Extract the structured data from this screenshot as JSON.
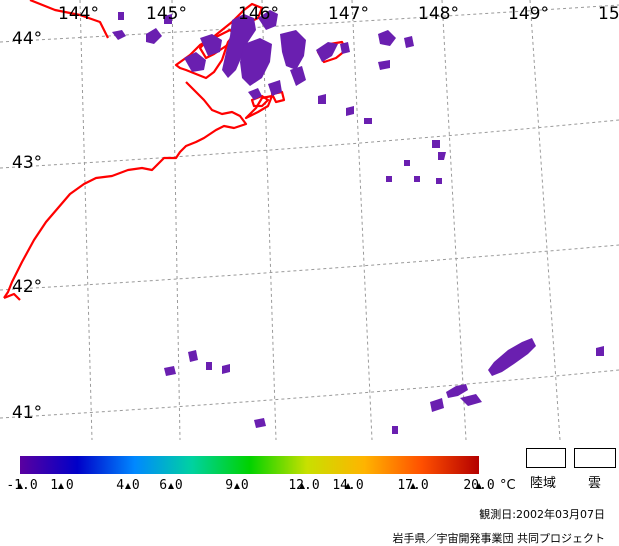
{
  "map": {
    "lon_labels": [
      "144°",
      "145°",
      "146°",
      "147°",
      "148°",
      "149°",
      "15"
    ],
    "lat_labels": [
      "44°",
      "43°",
      "42°",
      "41°"
    ],
    "colors": {
      "coast": "#ff0000",
      "grid": "#9a9a9a",
      "cloud": "#6a1fb0"
    }
  },
  "legend": {
    "tick_labels": [
      "-1.0",
      "1.0",
      "4.0",
      "6.0",
      "9.0",
      "12.0",
      "14.0",
      "17.0",
      "20.0"
    ],
    "unit": "°C",
    "land_label": "陸域",
    "cloud_label": "雲",
    "gradient_colors": [
      "#5a00a0",
      "#0000c8",
      "#0088ff",
      "#00d2a0",
      "#00d200",
      "#c8e000",
      "#ffb400",
      "#ff5000",
      "#b40000"
    ]
  },
  "footer": {
    "observation_date": "観測日:2002年03月07日",
    "credit": "岩手県／宇宙開発事業団 共同プロジェクト"
  }
}
